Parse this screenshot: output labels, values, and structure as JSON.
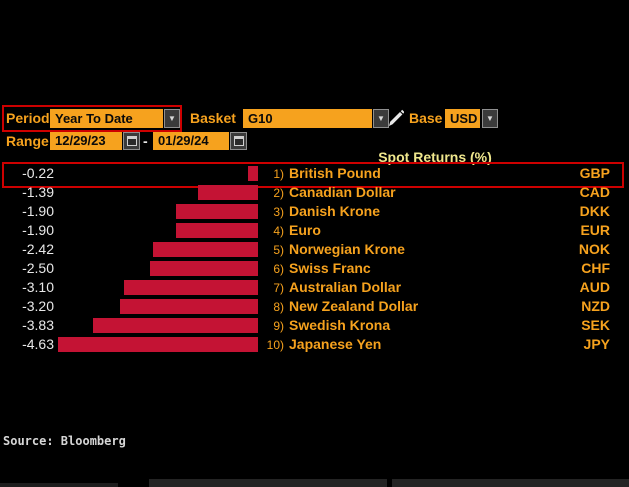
{
  "controls": {
    "period": {
      "label": "Period",
      "value": "Year To Date"
    },
    "basket": {
      "label": "Basket",
      "value": "G10"
    },
    "base": {
      "label": "Base",
      "value": "USD"
    },
    "range": {
      "label": "Range",
      "start": "12/29/23",
      "separator": "-",
      "end": "01/29/24"
    }
  },
  "chart_data": {
    "type": "bar",
    "orientation": "horizontal",
    "title": "Spot Returns (%)",
    "categories": [
      "British Pound",
      "Canadian Dollar",
      "Danish Krone",
      "Euro",
      "Norwegian Krone",
      "Swiss Franc",
      "Australian Dollar",
      "New Zealand Dollar",
      "Swedish Krona",
      "Japanese Yen"
    ],
    "codes": [
      "GBP",
      "CAD",
      "DKK",
      "EUR",
      "NOK",
      "CHF",
      "AUD",
      "NZD",
      "SEK",
      "JPY"
    ],
    "ranks": [
      "1)",
      "2)",
      "3)",
      "4)",
      "5)",
      "6)",
      "7)",
      "8)",
      "9)",
      "10)"
    ],
    "values": [
      -0.22,
      -1.39,
      -1.9,
      -1.9,
      -2.42,
      -2.5,
      -3.1,
      -3.2,
      -3.83,
      -4.63
    ],
    "value_labels": [
      "-0.22",
      "-1.39",
      "-1.90",
      "-1.90",
      "-2.42",
      "-2.50",
      "-3.10",
      "-3.20",
      "-3.83",
      "-4.63"
    ],
    "xlim": [
      -4.63,
      0
    ],
    "highlighted_row": 0,
    "legend": "none",
    "grid": false
  },
  "source": "Source: Bloomberg",
  "colors": {
    "background": "#000000",
    "accent_orange": "#F6A21E",
    "bar_red": "#C41334",
    "highlight_red": "#CE0000",
    "title_yellow": "#EFE78D",
    "value_white": "#E8E8E8"
  }
}
